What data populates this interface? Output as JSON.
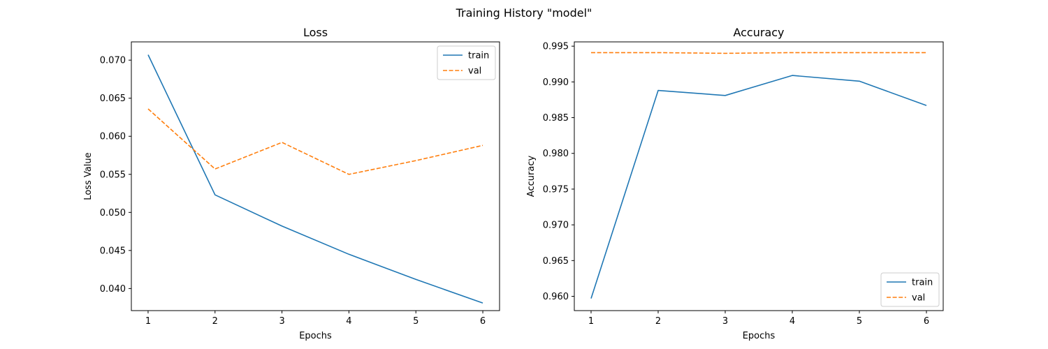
{
  "figure": {
    "suptitle": "Training History \"model\""
  },
  "colors": {
    "train": "#1f77b4",
    "val": "#ff7f0e",
    "axes": "#000000",
    "background": "#ffffff"
  },
  "chart_data": [
    {
      "type": "line",
      "title": "Loss",
      "xlabel": "Epochs",
      "ylabel": "Loss Value",
      "x": [
        1,
        2,
        3,
        4,
        5,
        6
      ],
      "xticks": [
        "1",
        "2",
        "3",
        "4",
        "5",
        "6"
      ],
      "xlim": [
        0.75,
        6.25
      ],
      "ylim": [
        0.0371,
        0.0724
      ],
      "yticks": [
        "0.040",
        "0.045",
        "0.050",
        "0.055",
        "0.060",
        "0.065",
        "0.070"
      ],
      "ytick_values": [
        0.04,
        0.045,
        0.05,
        0.055,
        0.06,
        0.065,
        0.07
      ],
      "grid": false,
      "legend": "upper right",
      "series": [
        {
          "name": "train",
          "style": "solid",
          "values": [
            0.0707,
            0.0523,
            0.0482,
            0.0445,
            0.0412,
            0.0381
          ]
        },
        {
          "name": "val",
          "style": "dashed",
          "values": [
            0.0636,
            0.0557,
            0.0592,
            0.055,
            0.0568,
            0.0588
          ]
        }
      ]
    },
    {
      "type": "line",
      "title": "Accuracy",
      "xlabel": "Epochs",
      "ylabel": "Accuracy",
      "x": [
        1,
        2,
        3,
        4,
        5,
        6
      ],
      "xticks": [
        "1",
        "2",
        "3",
        "4",
        "5",
        "6"
      ],
      "xlim": [
        0.75,
        6.25
      ],
      "ylim": [
        0.958,
        0.9956
      ],
      "yticks": [
        "0.960",
        "0.965",
        "0.970",
        "0.975",
        "0.980",
        "0.985",
        "0.990",
        "0.995"
      ],
      "ytick_values": [
        0.96,
        0.965,
        0.97,
        0.975,
        0.98,
        0.985,
        0.99,
        0.995
      ],
      "grid": false,
      "legend": "lower right",
      "series": [
        {
          "name": "train",
          "style": "solid",
          "values": [
            0.9597,
            0.9888,
            0.9881,
            0.9909,
            0.9901,
            0.9867
          ]
        },
        {
          "name": "val",
          "style": "dashed",
          "values": [
            0.9941,
            0.9941,
            0.994,
            0.9941,
            0.9941,
            0.9941
          ]
        }
      ]
    }
  ]
}
